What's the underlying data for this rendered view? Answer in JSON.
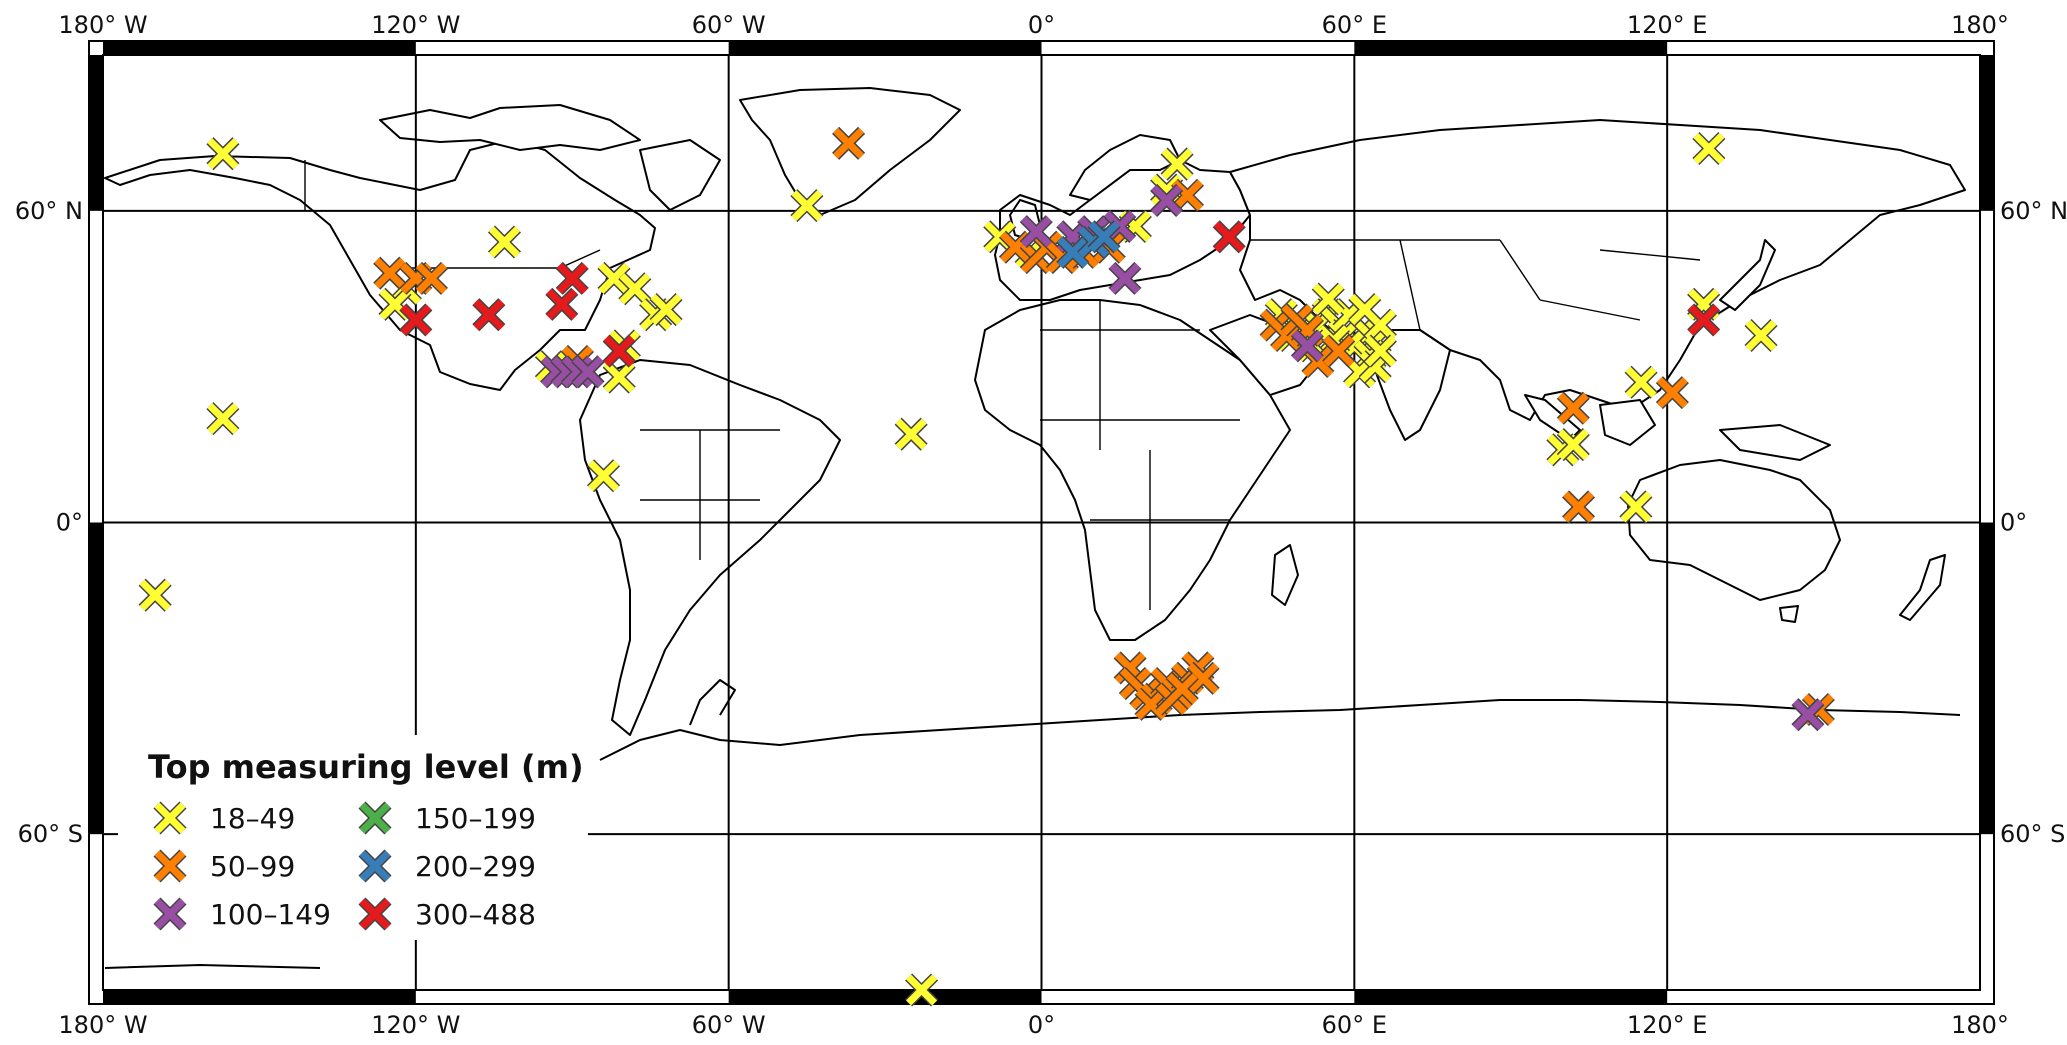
{
  "map": {
    "projection": "equirectangular",
    "lon_range": [
      -180,
      180
    ],
    "lat_range": [
      -90,
      90
    ],
    "graticule_lon": [
      -120,
      -60,
      0,
      60,
      120
    ],
    "graticule_lat": [
      -60,
      0,
      60
    ],
    "frame_style": "alternating black-white border"
  },
  "axes": {
    "top_labels": [
      "180° W",
      "120° W",
      "60° W",
      "0°",
      "60° E",
      "120° E",
      "180°"
    ],
    "bottom_labels": [
      "180° W",
      "120° W",
      "60° W",
      "0°",
      "60° E",
      "120° E",
      "180°"
    ],
    "left_labels": [
      "60° N",
      "0°",
      "60° S"
    ],
    "right_labels": [
      "60° N",
      "0°",
      "60° S"
    ]
  },
  "legend": {
    "title": "Top measuring level (m)",
    "placement": "bottom-left",
    "items": [
      {
        "label": "18–49",
        "color": "#ffff33"
      },
      {
        "label": "50–99",
        "color": "#ff7f00"
      },
      {
        "label": "100–149",
        "color": "#984ea3"
      },
      {
        "label": "150–199",
        "color": "#4daf4a"
      },
      {
        "label": "200–299",
        "color": "#377eb8"
      },
      {
        "label": "300–488",
        "color": "#e41a1c"
      }
    ]
  },
  "chart_data": {
    "type": "scatter",
    "xlabel": "",
    "ylabel": "",
    "xlim": [
      -180,
      180
    ],
    "ylim": [
      -90,
      90
    ],
    "marker": "x",
    "series": [
      {
        "name": "18–49",
        "points": [
          [
            -157,
            71
          ],
          [
            -103,
            54
          ],
          [
            -82,
            47
          ],
          [
            -78,
            45
          ],
          [
            -74,
            40
          ],
          [
            -72,
            41
          ],
          [
            -80,
            34
          ],
          [
            -81,
            28
          ],
          [
            -84,
            9
          ],
          [
            -94,
            30
          ],
          [
            -157,
            20
          ],
          [
            -170,
            -14
          ],
          [
            -45,
            61
          ],
          [
            -25,
            17
          ],
          [
            -23,
            -90
          ],
          [
            -8,
            55
          ],
          [
            -2,
            52
          ],
          [
            18,
            57
          ],
          [
            26,
            69
          ],
          [
            24,
            64
          ],
          [
            46,
            40
          ],
          [
            50,
            37
          ],
          [
            53,
            38
          ],
          [
            55,
            40
          ],
          [
            57,
            38
          ],
          [
            58,
            36
          ],
          [
            60,
            34
          ],
          [
            62,
            37
          ],
          [
            64,
            35
          ],
          [
            65,
            38
          ],
          [
            59,
            40
          ],
          [
            56,
            35
          ],
          [
            52,
            34
          ],
          [
            48,
            36
          ],
          [
            63,
            32
          ],
          [
            61,
            29
          ],
          [
            64,
            30
          ],
          [
            65,
            33
          ],
          [
            62,
            41
          ],
          [
            55,
            43
          ],
          [
            100,
            14
          ],
          [
            102,
            15
          ],
          [
            114,
            3
          ],
          [
            115,
            27
          ],
          [
            127,
            42
          ],
          [
            138,
            36
          ],
          [
            128,
            72
          ],
          [
            -122,
            45
          ],
          [
            -124,
            42
          ]
        ]
      },
      {
        "name": "50–99",
        "points": [
          [
            -125,
            48
          ],
          [
            -120,
            47
          ],
          [
            -117,
            47
          ],
          [
            -89,
            31
          ],
          [
            -87,
            29
          ],
          [
            -37,
            73
          ],
          [
            -5,
            53
          ],
          [
            -1,
            51
          ],
          [
            1,
            53
          ],
          [
            4,
            51
          ],
          [
            8,
            52
          ],
          [
            13,
            53
          ],
          [
            28,
            63
          ],
          [
            45,
            38
          ],
          [
            47,
            36
          ],
          [
            49,
            39
          ],
          [
            51,
            37
          ],
          [
            53,
            31
          ],
          [
            57,
            33
          ],
          [
            102,
            22
          ],
          [
            103,
            3
          ],
          [
            121,
            25
          ],
          [
            149,
            -36
          ],
          [
            17,
            -28
          ],
          [
            18,
            -31
          ],
          [
            20,
            -33
          ],
          [
            22,
            -34
          ],
          [
            24,
            -31
          ],
          [
            26,
            -33
          ],
          [
            28,
            -30
          ],
          [
            30,
            -28
          ],
          [
            31,
            -30
          ],
          [
            21,
            -35
          ],
          [
            25,
            -34
          ],
          [
            27,
            -32
          ]
        ]
      },
      {
        "name": "100–149",
        "points": [
          [
            -93,
            29
          ],
          [
            -91,
            29
          ],
          [
            -89,
            29
          ],
          [
            -87,
            29
          ],
          [
            -1,
            56
          ],
          [
            6,
            55
          ],
          [
            10,
            56
          ],
          [
            15,
            57
          ],
          [
            16,
            47
          ],
          [
            24,
            62
          ],
          [
            51,
            34
          ],
          [
            147,
            -37
          ]
        ]
      },
      {
        "name": "150–199",
        "points": []
      },
      {
        "name": "200–299",
        "points": [
          [
            6,
            52
          ],
          [
            10,
            54
          ],
          [
            12,
            55
          ]
        ]
      },
      {
        "name": "300–488",
        "points": [
          [
            -120,
            39
          ],
          [
            -106,
            40
          ],
          [
            -92,
            42
          ],
          [
            -90,
            47
          ],
          [
            -81,
            33
          ],
          [
            36,
            55
          ],
          [
            127,
            39
          ]
        ]
      }
    ]
  }
}
